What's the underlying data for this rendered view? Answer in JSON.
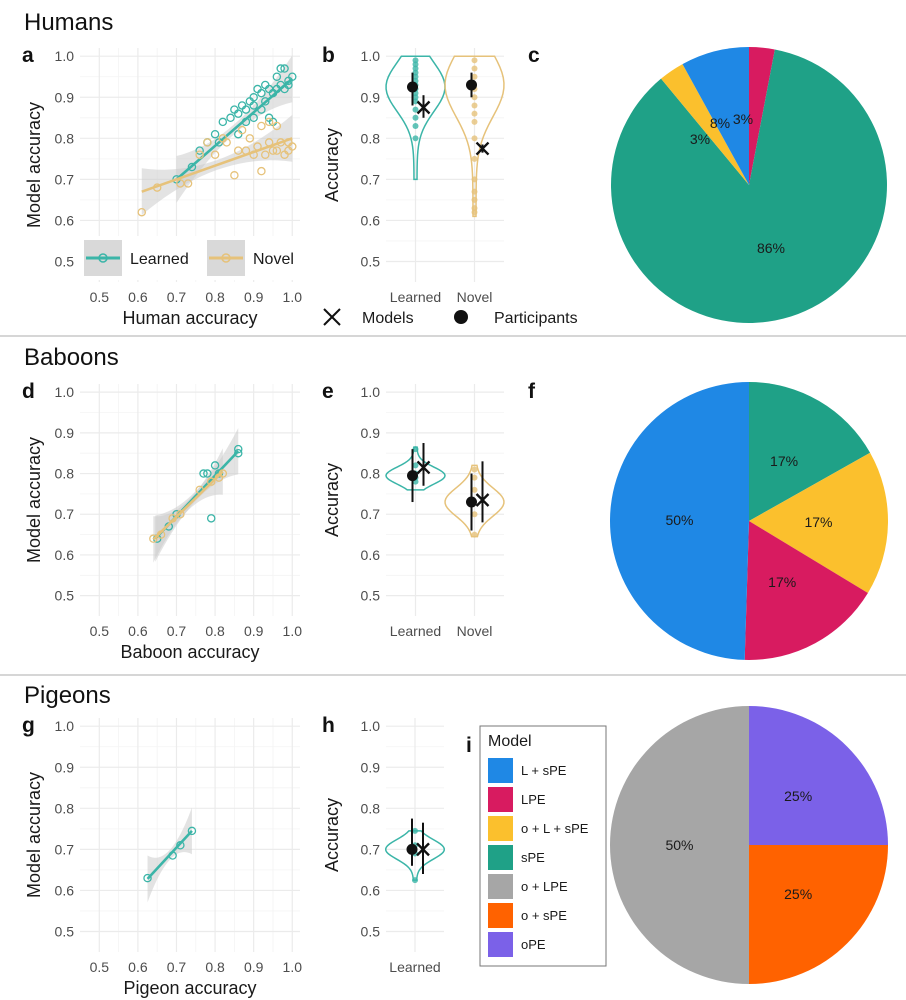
{
  "colors": {
    "learned": "#3bb5a8",
    "novel": "#e6c27a",
    "point": "#000000",
    "grid": "#ebebeb",
    "band": "#cccccc",
    "separator": "#c8c8c8"
  },
  "rows": [
    {
      "title": "Humans"
    },
    {
      "title": "Baboons"
    },
    {
      "title": "Pigeons"
    }
  ],
  "legend_series": {
    "learned": "Learned",
    "novel": "Novel"
  },
  "legend_markers": {
    "models": "Models",
    "participants": "Participants"
  },
  "model_legend": {
    "title": "Model",
    "items": [
      {
        "label": "L + sPE",
        "color": "#1f88e5"
      },
      {
        "label": "LPE",
        "color": "#d81b60"
      },
      {
        "label": "o + L + sPE",
        "color": "#fbc02d"
      },
      {
        "label": "sPE",
        "color": "#1fa187"
      },
      {
        "label": "o + LPE",
        "color": "#a6a6a6"
      },
      {
        "label": "o + sPE",
        "color": "#ff6200"
      },
      {
        "label": "oPE",
        "color": "#7b61e8"
      }
    ]
  },
  "chart_data": [
    {
      "panel": "a",
      "type": "scatter",
      "xlabel": "Human accuracy",
      "ylabel": "Model accuracy",
      "xlim": [
        0.45,
        1.02
      ],
      "ylim": [
        0.45,
        1.02
      ],
      "xticks": [
        "0.5",
        "0.6",
        "0.7",
        "0.8",
        "0.9",
        "1.0"
      ],
      "yticks": [
        "0.5",
        "0.6",
        "0.7",
        "0.8",
        "0.9",
        "1.0"
      ],
      "legend": "bottom-left inside",
      "series": [
        {
          "name": "Learned",
          "x": [
            0.7,
            0.74,
            0.76,
            0.78,
            0.8,
            0.81,
            0.82,
            0.84,
            0.85,
            0.86,
            0.87,
            0.88,
            0.88,
            0.89,
            0.9,
            0.9,
            0.91,
            0.92,
            0.92,
            0.93,
            0.93,
            0.94,
            0.94,
            0.95,
            0.95,
            0.96,
            0.96,
            0.97,
            0.97,
            0.98,
            0.98,
            0.99,
            0.99,
            1.0,
            0.9,
            0.86
          ],
          "y": [
            0.7,
            0.73,
            0.77,
            0.79,
            0.81,
            0.79,
            0.84,
            0.85,
            0.87,
            0.86,
            0.88,
            0.87,
            0.84,
            0.89,
            0.9,
            0.88,
            0.92,
            0.91,
            0.87,
            0.93,
            0.89,
            0.92,
            0.85,
            0.91,
            0.84,
            0.95,
            0.92,
            0.93,
            0.97,
            0.92,
            0.97,
            0.94,
            0.93,
            0.95,
            0.85,
            0.81
          ],
          "fit": {
            "x": [
              0.7,
              1.0
            ],
            "y": [
              0.7,
              0.945
            ]
          }
        },
        {
          "name": "Novel",
          "x": [
            0.61,
            0.65,
            0.71,
            0.73,
            0.76,
            0.78,
            0.8,
            0.82,
            0.83,
            0.85,
            0.86,
            0.87,
            0.88,
            0.89,
            0.9,
            0.91,
            0.92,
            0.92,
            0.93,
            0.94,
            0.94,
            0.95,
            0.96,
            0.96,
            0.97,
            0.98,
            0.99,
            0.99,
            1.0
          ],
          "y": [
            0.62,
            0.68,
            0.69,
            0.69,
            0.76,
            0.79,
            0.76,
            0.8,
            0.79,
            0.71,
            0.77,
            0.82,
            0.77,
            0.8,
            0.76,
            0.78,
            0.72,
            0.83,
            0.76,
            0.79,
            0.84,
            0.77,
            0.77,
            0.83,
            0.79,
            0.76,
            0.79,
            0.77,
            0.78
          ],
          "fit": {
            "x": [
              0.61,
              1.0
            ],
            "y": [
              0.67,
              0.8
            ]
          }
        }
      ]
    },
    {
      "panel": "b",
      "type": "violin",
      "ylabel": "Accuracy",
      "categories": [
        "Learned",
        "Novel"
      ],
      "ylim": [
        0.45,
        1.02
      ],
      "yticks": [
        "0.5",
        "0.6",
        "0.7",
        "0.8",
        "0.9",
        "1.0"
      ],
      "series": [
        {
          "name": "Learned",
          "participants_mean": 0.925,
          "participants_ci": [
            0.88,
            0.96
          ],
          "models_mean": 0.875,
          "models_ci": [
            0.85,
            0.905
          ],
          "range": [
            0.7,
            1.0
          ],
          "points": [
            0.99,
            0.98,
            0.97,
            0.96,
            0.95,
            0.94,
            0.93,
            0.92,
            0.91,
            0.9,
            0.89,
            0.87,
            0.85,
            0.83,
            0.8
          ]
        },
        {
          "name": "Novel",
          "participants_mean": 0.93,
          "participants_ci": [
            0.9,
            0.96
          ],
          "models_mean": 0.775,
          "models_ci": [
            0.765,
            0.785
          ],
          "range": [
            0.61,
            1.0
          ],
          "points": [
            0.99,
            0.97,
            0.95,
            0.92,
            0.9,
            0.88,
            0.86,
            0.84,
            0.8,
            0.75,
            0.7,
            0.67,
            0.65,
            0.63,
            0.62
          ]
        }
      ]
    },
    {
      "panel": "c",
      "type": "pie",
      "slices": [
        {
          "label": "8%",
          "model": "L + sPE",
          "value": 8
        },
        {
          "label": "3%",
          "model": "LPE",
          "value": 3
        },
        {
          "label": "3%",
          "model": "o + L + sPE",
          "value": 3
        },
        {
          "label": "86%",
          "model": "sPE",
          "value": 86
        }
      ],
      "order": [
        "LPE",
        "sPE",
        "o + L + sPE",
        "L + sPE"
      ]
    },
    {
      "panel": "d",
      "type": "scatter",
      "xlabel": "Baboon accuracy",
      "ylabel": "Model accuracy",
      "xlim": [
        0.45,
        1.02
      ],
      "ylim": [
        0.45,
        1.02
      ],
      "xticks": [
        "0.5",
        "0.6",
        "0.7",
        "0.8",
        "0.9",
        "1.0"
      ],
      "yticks": [
        "0.5",
        "0.6",
        "0.7",
        "0.8",
        "0.9",
        "1.0"
      ],
      "series": [
        {
          "name": "Learned",
          "x": [
            0.65,
            0.68,
            0.7,
            0.77,
            0.78,
            0.79,
            0.8,
            0.81,
            0.86,
            0.86
          ],
          "y": [
            0.64,
            0.67,
            0.7,
            0.8,
            0.8,
            0.69,
            0.82,
            0.8,
            0.86,
            0.85
          ],
          "fit": {
            "x": [
              0.645,
              0.86
            ],
            "y": [
              0.64,
              0.855
            ]
          }
        },
        {
          "name": "Novel",
          "x": [
            0.64,
            0.66,
            0.69,
            0.71,
            0.76,
            0.79,
            0.81,
            0.82
          ],
          "y": [
            0.64,
            0.65,
            0.69,
            0.7,
            0.76,
            0.78,
            0.79,
            0.8
          ],
          "fit": {
            "x": [
              0.64,
              0.82
            ],
            "y": [
              0.638,
              0.805
            ]
          }
        }
      ]
    },
    {
      "panel": "e",
      "type": "violin",
      "ylabel": "Accuracy",
      "categories": [
        "Learned",
        "Novel"
      ],
      "ylim": [
        0.45,
        1.02
      ],
      "yticks": [
        "0.5",
        "0.6",
        "0.7",
        "0.8",
        "0.9",
        "1.0"
      ],
      "series": [
        {
          "name": "Learned",
          "participants_mean": 0.795,
          "participants_ci": [
            0.73,
            0.86
          ],
          "models_mean": 0.815,
          "models_ci": [
            0.77,
            0.875
          ],
          "range": [
            0.76,
            0.865
          ],
          "points": [
            0.86,
            0.82,
            0.8,
            0.79,
            0.78
          ]
        },
        {
          "name": "Novel",
          "participants_mean": 0.73,
          "participants_ci": [
            0.66,
            0.8
          ],
          "models_mean": 0.735,
          "models_ci": [
            0.68,
            0.83
          ],
          "range": [
            0.645,
            0.82
          ],
          "points": [
            0.81,
            0.79,
            0.76,
            0.7,
            0.65
          ]
        }
      ]
    },
    {
      "panel": "f",
      "type": "pie",
      "slices": [
        {
          "label": "17%",
          "model": "sPE",
          "value": 17
        },
        {
          "label": "17%",
          "model": "o + L + sPE",
          "value": 17
        },
        {
          "label": "17%",
          "model": "LPE",
          "value": 17
        },
        {
          "label": "50%",
          "model": "L + sPE",
          "value": 50
        }
      ]
    },
    {
      "panel": "g",
      "type": "scatter",
      "xlabel": "Pigeon accuracy",
      "ylabel": "Model accuracy",
      "xlim": [
        0.45,
        1.02
      ],
      "ylim": [
        0.45,
        1.02
      ],
      "xticks": [
        "0.5",
        "0.6",
        "0.7",
        "0.8",
        "0.9",
        "1.0"
      ],
      "yticks": [
        "0.5",
        "0.6",
        "0.7",
        "0.8",
        "0.9",
        "1.0"
      ],
      "series": [
        {
          "name": "Learned",
          "x": [
            0.625,
            0.69,
            0.71,
            0.74
          ],
          "y": [
            0.63,
            0.685,
            0.71,
            0.745
          ],
          "fit": {
            "x": [
              0.625,
              0.74
            ],
            "y": [
              0.628,
              0.745
            ]
          }
        }
      ]
    },
    {
      "panel": "h",
      "type": "violin",
      "ylabel": "Accuracy",
      "categories": [
        "Learned"
      ],
      "ylim": [
        0.45,
        1.02
      ],
      "yticks": [
        "0.5",
        "0.6",
        "0.7",
        "0.8",
        "0.9",
        "1.0"
      ],
      "series": [
        {
          "name": "Learned",
          "participants_mean": 0.7,
          "participants_ci": [
            0.66,
            0.775
          ],
          "models_mean": 0.7,
          "models_ci": [
            0.64,
            0.765
          ],
          "range": [
            0.625,
            0.745
          ],
          "points": [
            0.745,
            0.71,
            0.69,
            0.625
          ]
        }
      ]
    },
    {
      "panel": "i",
      "type": "pie",
      "slices": [
        {
          "label": "25%",
          "model": "oPE",
          "value": 25
        },
        {
          "label": "25%",
          "model": "o + sPE",
          "value": 25
        },
        {
          "label": "50%",
          "model": "o + LPE",
          "value": 50
        }
      ]
    }
  ]
}
